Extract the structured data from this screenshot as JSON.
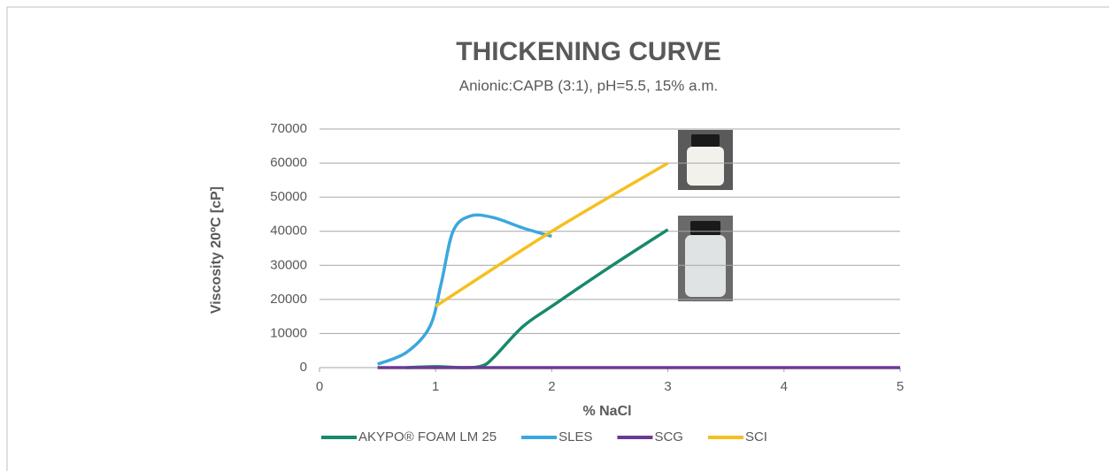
{
  "chart_data": {
    "type": "line",
    "title": "THICKENING CURVE",
    "subtitle": "Anionic:CAPB (3:1), pH=5.5, 15% a.m.",
    "x_label": "% NaCl",
    "y_label": "Viscosity 20ºC [cP]",
    "xlim": [
      0,
      5
    ],
    "xticks": [
      0,
      1,
      2,
      3,
      4,
      5
    ],
    "ylim": [
      0,
      70000
    ],
    "yticks": [
      0,
      10000,
      20000,
      30000,
      40000,
      50000,
      60000,
      70000
    ],
    "grid": true,
    "legend": "bottom",
    "series": [
      {
        "name": "AKYPO® FOAM LM 25",
        "color": "#17896c",
        "x": [
          0.75,
          1,
          1.25,
          1.4,
          1.5,
          1.75,
          2,
          2.5,
          3
        ],
        "values": [
          0,
          300,
          0,
          500,
          3000,
          12000,
          18000,
          29500,
          40500
        ]
      },
      {
        "name": "SLES",
        "color": "#3ba7df",
        "x": [
          0.5,
          0.75,
          0.95,
          1.05,
          1.15,
          1.3,
          1.5,
          1.75,
          2
        ],
        "values": [
          1000,
          4500,
          12000,
          25000,
          40000,
          44500,
          44000,
          41000,
          38500
        ]
      },
      {
        "name": "SCG",
        "color": "#6b3a96",
        "x": [
          0.5,
          1,
          2,
          3,
          4,
          5
        ],
        "values": [
          0,
          0,
          0,
          0,
          0,
          0
        ]
      },
      {
        "name": "SCI",
        "color": "#f5c01f",
        "x": [
          1,
          2,
          3
        ],
        "values": [
          18000,
          40000,
          60000
        ]
      }
    ]
  }
}
